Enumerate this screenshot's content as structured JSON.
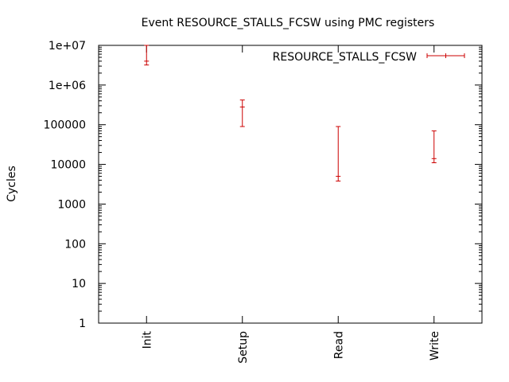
{
  "chart_data": {
    "type": "scatter",
    "title": "Event RESOURCE_STALLS_FCSW using PMC registers",
    "xlabel": "",
    "ylabel": "Cycles",
    "y_scale": "log",
    "ylim": [
      1,
      10000000
    ],
    "y_ticks": [
      1,
      10,
      100,
      1000,
      10000,
      100000,
      1000000,
      10000000
    ],
    "y_tick_labels": [
      "1",
      "10",
      "100",
      "1000",
      "10000",
      "100000",
      "1e+06",
      "1e+07"
    ],
    "categories": [
      "Init",
      "Setup",
      "Read",
      "Write"
    ],
    "grid": false,
    "legend_position": "top-right",
    "series": [
      {
        "name": "RESOURCE_STALLS_FCSW",
        "color": "#cc0000",
        "points": [
          {
            "x": "Init",
            "y": 4000000,
            "low": 3200000,
            "high": 10000000
          },
          {
            "x": "Setup",
            "y": 280000,
            "low": 90000,
            "high": 420000
          },
          {
            "x": "Read",
            "y": 5000,
            "low": 3800,
            "high": 90000
          },
          {
            "x": "Write",
            "y": 14000,
            "low": 11000,
            "high": 70000
          }
        ]
      }
    ]
  }
}
